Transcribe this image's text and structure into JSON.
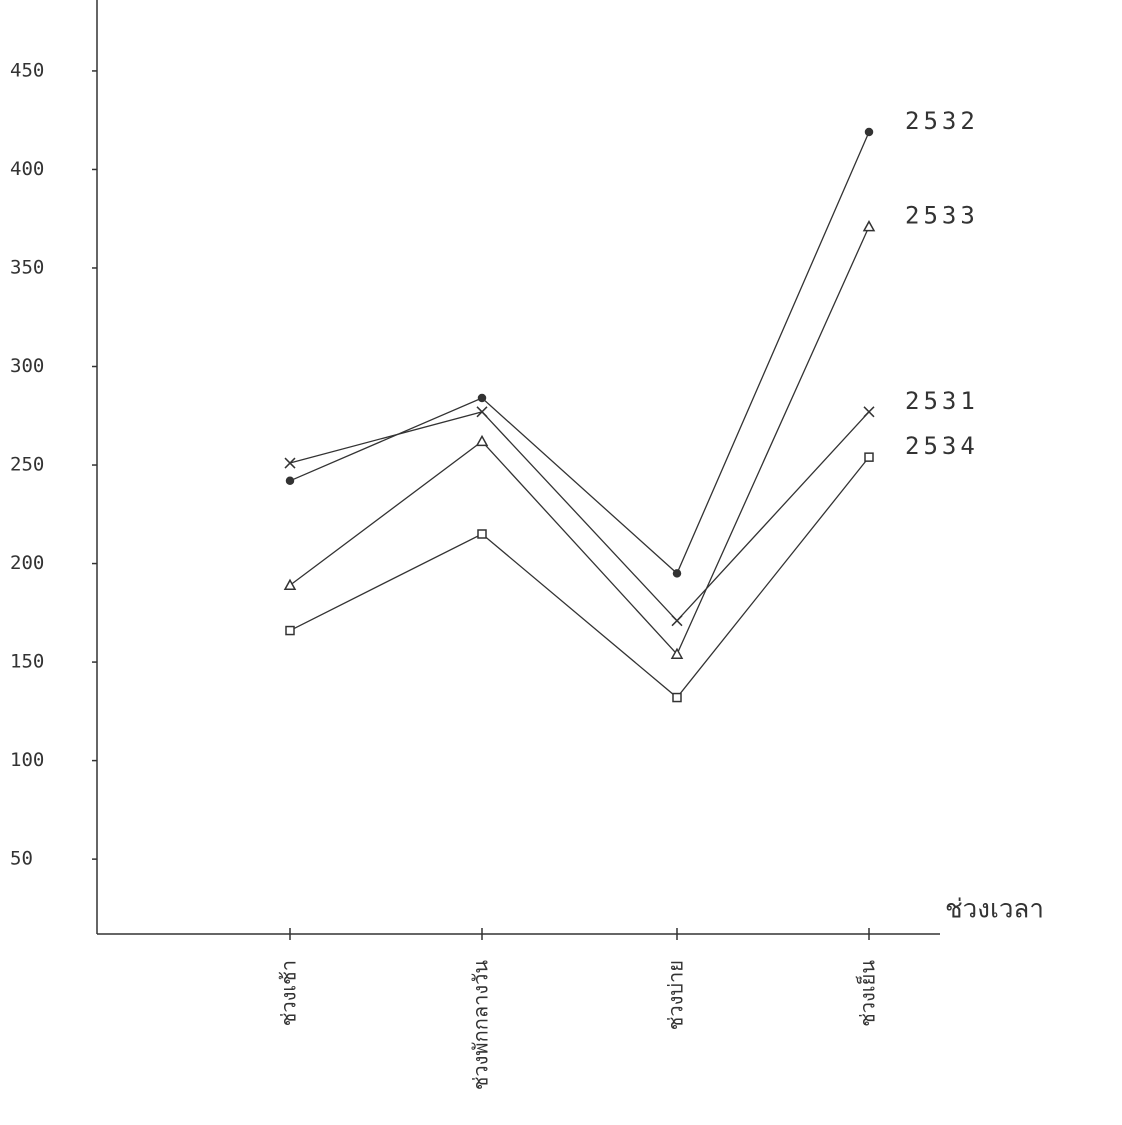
{
  "chart_data": {
    "type": "line",
    "x_label": "ช่วงเวลา",
    "categories": [
      "ช่วงเช้า",
      "ช่วงพักกลางวัน",
      "ช่วงบ่าย",
      "ช่วงเย็น"
    ],
    "series": [
      {
        "name": "2532",
        "color": "#333333",
        "marker": "dot",
        "values": [
          242,
          284,
          195,
          419
        ]
      },
      {
        "name": "2533",
        "color": "#333333",
        "marker": "triangle",
        "values": [
          189,
          262,
          154,
          371
        ]
      },
      {
        "name": "2531",
        "color": "#333333",
        "marker": "x",
        "values": [
          251,
          277,
          171,
          277
        ]
      },
      {
        "name": "2534",
        "color": "#333333",
        "marker": "square",
        "values": [
          166,
          215,
          132,
          254
        ]
      }
    ],
    "ylim": [
      12,
      486
    ],
    "yticks": [
      50,
      100,
      150,
      200,
      250,
      300,
      350,
      400,
      450
    ],
    "grid": false
  }
}
